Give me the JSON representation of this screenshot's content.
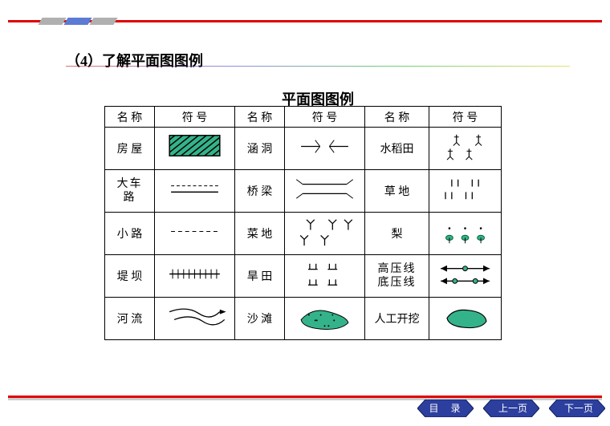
{
  "heading": "（4）了解平面图图例",
  "subheading": "平面图图例",
  "colors": {
    "accent_green": "#34b38a",
    "red": "#e00000",
    "nav_blue": "#2c3f9e"
  },
  "table": {
    "headers": {
      "name": "名 称",
      "symbol": "符  号"
    },
    "rows": [
      {
        "n1": "房 屋",
        "s1": "hatched_rect",
        "n2": "涵 洞",
        "s2": "culvert",
        "n3": "水稻田",
        "s3": "rice"
      },
      {
        "n1": "大车\n路",
        "s1": "road_big",
        "n2": "桥 梁",
        "s2": "bridge",
        "n3": "草 地",
        "s3": "grass"
      },
      {
        "n1": "小 路",
        "s1": "road_small",
        "n2": "菜 地",
        "s2": "veg",
        "n3": "梨",
        "s3": "pear"
      },
      {
        "n1": "堤 坝",
        "s1": "dyke",
        "n2": "旱 田",
        "s2": "dryfield",
        "n3": "高压线\n底压线",
        "s3": "powerline"
      },
      {
        "n1": "河 流",
        "s1": "river",
        "n2": "沙 滩",
        "s2": "beach",
        "n3": "人工开挖",
        "s3": "excavate"
      }
    ]
  },
  "nav": {
    "toc": "目 录",
    "prev": "上一页",
    "next": "下一页"
  }
}
